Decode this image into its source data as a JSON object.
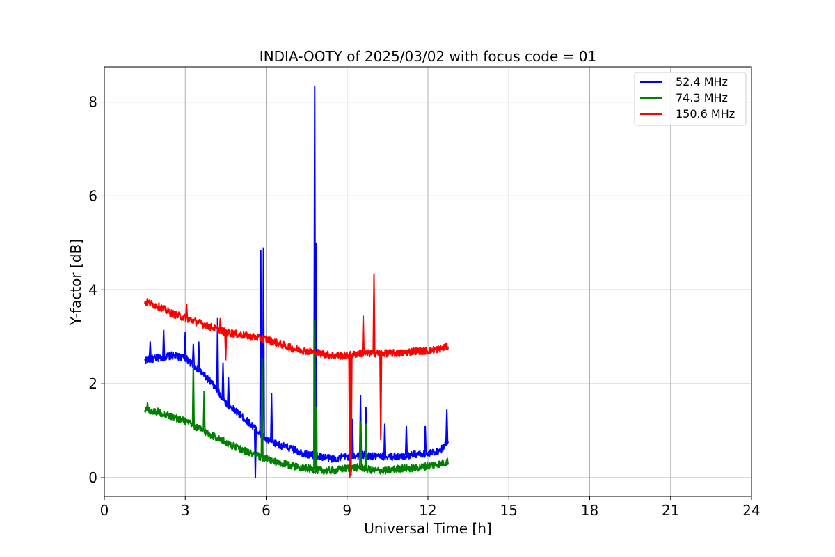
{
  "chart_data": {
    "type": "line",
    "title": "INDIA-OOTY of 2025/03/02 with focus code = 01",
    "xlabel": "Universal Time [h]",
    "ylabel": "Y-factor [dB]",
    "xlim": [
      0,
      24
    ],
    "ylim": [
      -0.4,
      8.75
    ],
    "xticks": [
      0,
      3,
      6,
      9,
      12,
      15,
      18,
      21,
      24
    ],
    "yticks": [
      0,
      2,
      4,
      6,
      8
    ],
    "grid": true,
    "legend_position": "top-right",
    "series": [
      {
        "name": "52.4 MHz",
        "color": "#0000ff",
        "points": [
          [
            1.5,
            2.5
          ],
          [
            2.0,
            2.55
          ],
          [
            2.5,
            2.6
          ],
          [
            3.0,
            2.55
          ],
          [
            3.5,
            2.3
          ],
          [
            4.0,
            2.0
          ],
          [
            4.5,
            1.6
          ],
          [
            5.0,
            1.35
          ],
          [
            5.5,
            1.1
          ],
          [
            6.0,
            0.8
          ],
          [
            6.5,
            0.7
          ],
          [
            7.0,
            0.6
          ],
          [
            7.5,
            0.5
          ],
          [
            8.0,
            0.45
          ],
          [
            8.5,
            0.4
          ],
          [
            9.0,
            0.45
          ],
          [
            9.5,
            0.48
          ],
          [
            10.0,
            0.45
          ],
          [
            10.5,
            0.45
          ],
          [
            11.0,
            0.45
          ],
          [
            11.5,
            0.5
          ],
          [
            12.0,
            0.5
          ],
          [
            12.5,
            0.6
          ],
          [
            12.75,
            0.8
          ]
        ],
        "spikes": [
          [
            1.7,
            2.9
          ],
          [
            2.2,
            3.15
          ],
          [
            3.0,
            3.1
          ],
          [
            3.3,
            2.85
          ],
          [
            3.5,
            2.9
          ],
          [
            4.2,
            3.4
          ],
          [
            4.4,
            2.45
          ],
          [
            4.6,
            2.15
          ],
          [
            5.6,
            0.0
          ],
          [
            5.8,
            4.85
          ],
          [
            5.9,
            4.9
          ],
          [
            6.2,
            1.8
          ],
          [
            7.8,
            8.35
          ],
          [
            7.85,
            5.0
          ],
          [
            9.2,
            1.25
          ],
          [
            9.5,
            1.75
          ],
          [
            9.7,
            1.5
          ],
          [
            10.4,
            1.15
          ],
          [
            11.2,
            1.1
          ],
          [
            11.9,
            1.1
          ],
          [
            12.7,
            1.45
          ]
        ]
      },
      {
        "name": "74.3 MHz",
        "color": "#008000",
        "points": [
          [
            1.5,
            1.45
          ],
          [
            2.0,
            1.4
          ],
          [
            2.5,
            1.3
          ],
          [
            3.0,
            1.2
          ],
          [
            3.5,
            1.05
          ],
          [
            4.0,
            0.9
          ],
          [
            4.5,
            0.75
          ],
          [
            5.0,
            0.62
          ],
          [
            5.5,
            0.5
          ],
          [
            6.0,
            0.4
          ],
          [
            6.5,
            0.3
          ],
          [
            7.0,
            0.25
          ],
          [
            7.5,
            0.2
          ],
          [
            8.0,
            0.15
          ],
          [
            8.5,
            0.15
          ],
          [
            9.0,
            0.2
          ],
          [
            9.5,
            0.22
          ],
          [
            10.0,
            0.15
          ],
          [
            10.5,
            0.15
          ],
          [
            11.0,
            0.2
          ],
          [
            11.5,
            0.2
          ],
          [
            12.0,
            0.25
          ],
          [
            12.5,
            0.3
          ],
          [
            12.75,
            0.35
          ]
        ],
        "spikes": [
          [
            1.6,
            1.6
          ],
          [
            3.3,
            2.5
          ],
          [
            3.7,
            1.85
          ],
          [
            5.85,
            2.55
          ],
          [
            7.8,
            3.35
          ],
          [
            7.85,
            1.5
          ],
          [
            9.5,
            1.2
          ],
          [
            9.7,
            1.15
          ]
        ]
      },
      {
        "name": "150.6 MHz",
        "color": "#ff0000",
        "points": [
          [
            1.5,
            3.75
          ],
          [
            2.0,
            3.65
          ],
          [
            2.5,
            3.5
          ],
          [
            3.0,
            3.4
          ],
          [
            3.5,
            3.3
          ],
          [
            4.0,
            3.2
          ],
          [
            4.5,
            3.1
          ],
          [
            5.0,
            3.05
          ],
          [
            5.5,
            3.0
          ],
          [
            6.0,
            2.95
          ],
          [
            6.5,
            2.85
          ],
          [
            7.0,
            2.75
          ],
          [
            7.5,
            2.7
          ],
          [
            8.0,
            2.65
          ],
          [
            8.5,
            2.6
          ],
          [
            9.0,
            2.6
          ],
          [
            9.5,
            2.65
          ],
          [
            10.0,
            2.65
          ],
          [
            10.5,
            2.65
          ],
          [
            11.0,
            2.65
          ],
          [
            11.5,
            2.7
          ],
          [
            12.0,
            2.7
          ],
          [
            12.5,
            2.75
          ],
          [
            12.75,
            2.8
          ]
        ],
        "spikes": [
          [
            3.05,
            3.7
          ],
          [
            4.3,
            3.4
          ],
          [
            4.5,
            2.5
          ],
          [
            9.1,
            0.0
          ],
          [
            9.15,
            0.05
          ],
          [
            9.6,
            3.45
          ],
          [
            10.0,
            4.35
          ],
          [
            10.25,
            0.8
          ]
        ]
      }
    ]
  }
}
